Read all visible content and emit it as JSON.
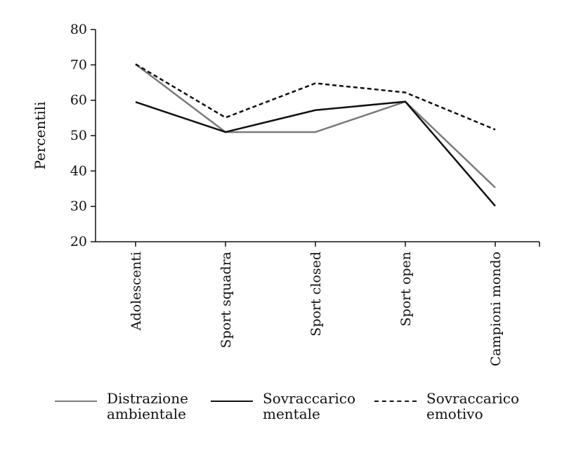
{
  "chart_data": {
    "type": "line",
    "ylabel": "Percentili",
    "xlabel": "",
    "ylim": [
      20,
      80
    ],
    "yticks": [
      20,
      30,
      40,
      50,
      60,
      70,
      80
    ],
    "categories": [
      "Adolescenti",
      "Sport squadra",
      "Sport closed",
      "Sport open",
      "Campioni mondo"
    ],
    "series": [
      {
        "name": "Distrazione\nambientale",
        "values": [
          70.2,
          51.0,
          51.0,
          59.6,
          35.3
        ],
        "color": "#7a7a7a",
        "dash": "solid"
      },
      {
        "name": "Sovraccarico\nmentale",
        "values": [
          59.5,
          51.0,
          57.2,
          59.6,
          30.1
        ],
        "color": "#111111",
        "dash": "solid"
      },
      {
        "name": "Sovraccarico\nemotivo",
        "values": [
          70.2,
          55.1,
          64.8,
          62.2,
          51.7
        ],
        "color": "#111111",
        "dash": "dashed"
      }
    ],
    "grid": false,
    "legend_position": "bottom"
  }
}
